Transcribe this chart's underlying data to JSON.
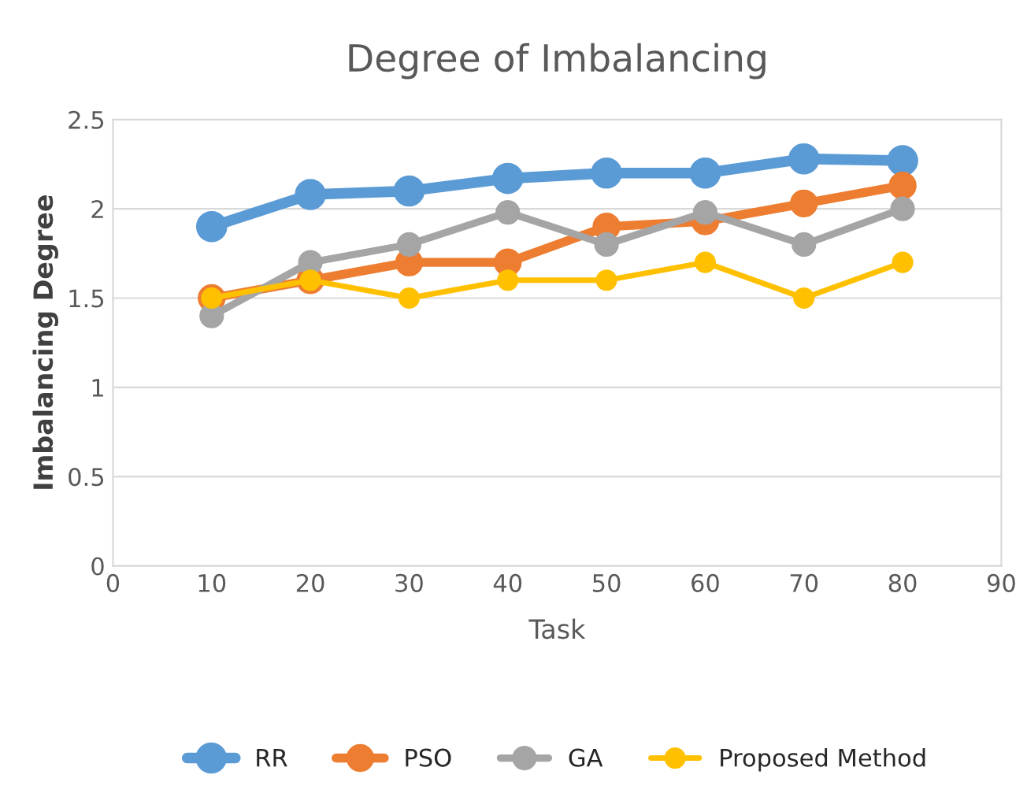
{
  "chart_data": {
    "type": "line",
    "title": "Degree of Imbalancing",
    "xlabel": "Task",
    "ylabel": "Imbalancing Degree",
    "x": [
      10,
      20,
      30,
      40,
      50,
      60,
      70,
      80
    ],
    "series": [
      {
        "name": "RR",
        "color": "#5b9bd5",
        "values": [
          1.9,
          2.08,
          2.1,
          2.17,
          2.2,
          2.2,
          2.28,
          2.27
        ]
      },
      {
        "name": "PSO",
        "color": "#ed7d31",
        "values": [
          1.5,
          1.6,
          1.7,
          1.7,
          1.9,
          1.93,
          2.03,
          2.13
        ]
      },
      {
        "name": "GA",
        "color": "#a5a5a5",
        "values": [
          1.4,
          1.7,
          1.8,
          1.98,
          1.8,
          1.98,
          1.8,
          2.0
        ]
      },
      {
        "name": "Proposed Method",
        "color": "#ffc000",
        "values": [
          1.5,
          1.6,
          1.5,
          1.6,
          1.6,
          1.7,
          1.5,
          1.7
        ]
      }
    ],
    "xlim": [
      0,
      90
    ],
    "xticks": [
      0,
      10,
      20,
      30,
      40,
      50,
      60,
      70,
      80,
      90
    ],
    "ylim": [
      0,
      2.5
    ],
    "yticks": [
      0,
      0.5,
      1,
      1.5,
      2,
      2.5
    ],
    "grid": "y",
    "legend": "bottom",
    "marker": "circle",
    "line_style": "solid"
  }
}
